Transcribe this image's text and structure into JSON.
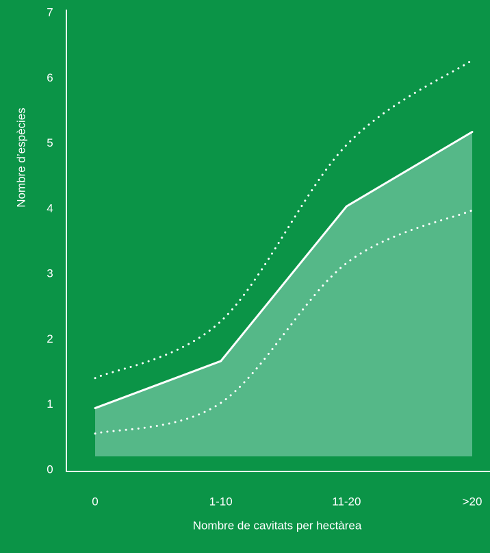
{
  "chart_data": {
    "type": "line",
    "x_label": "Nombre de cavitats per hectàrea",
    "y_label": "Nombre d’espècies",
    "categories": [
      "0",
      "1-10",
      "11-20",
      ">20"
    ],
    "ylim": [
      0,
      7
    ],
    "yticks": [
      0,
      1,
      2,
      3,
      4,
      5,
      6,
      7
    ],
    "series": [
      {
        "values": [
          0.97,
          1.69,
          4.06,
          5.2
        ],
        "color": "#ffffff",
        "style": "solid",
        "fill": "#55b888"
      },
      {
        "values": [
          1.43,
          2.3,
          5.0,
          6.3
        ],
        "color": "#ffffff",
        "style": "dotted"
      },
      {
        "values": [
          0.58,
          1.05,
          3.19,
          4.0
        ],
        "color": "#ffffff",
        "style": "dotted"
      }
    ]
  }
}
